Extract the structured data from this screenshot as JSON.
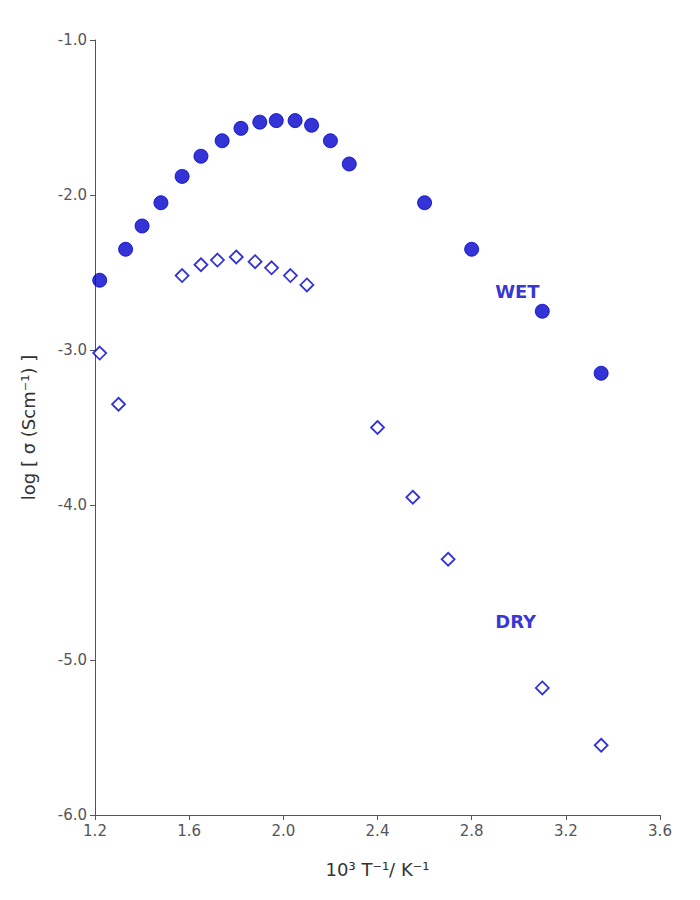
{
  "chart_data": {
    "type": "scatter",
    "xlabel": "10³ T⁻¹/ K⁻¹",
    "ylabel": "log [ σ (Scm⁻¹) ]",
    "color": "#0000CC",
    "grid": false,
    "xlim": [
      1.2,
      3.6
    ],
    "ylim": [
      -6.0,
      -1.0
    ],
    "xticks": [
      1.2,
      1.6,
      {
        "value": 2.0,
        "label": "2.0"
      },
      2.4,
      2.8,
      3.2,
      3.6
    ],
    "yticks": [
      {
        "value": -6.0,
        "label": "-6.0"
      },
      {
        "value": -5.0,
        "label": "-5.0"
      },
      {
        "value": -4.0,
        "label": "-4.0"
      },
      {
        "value": -3.0,
        "label": "-3.0"
      },
      {
        "value": -2.0,
        "label": "-2.0"
      },
      {
        "value": -1.0,
        "label": "-1.0"
      }
    ],
    "series": [
      {
        "marker": "circle",
        "color": "#0000CC",
        "x": [
          1.22,
          1.33,
          1.4,
          1.48,
          1.57,
          1.65,
          1.74,
          1.82,
          1.9,
          1.97,
          2.05,
          2.12,
          2.2,
          2.28,
          2.6,
          2.8,
          3.1,
          3.35
        ],
        "values": [
          -2.55,
          -2.35,
          -2.2,
          -2.05,
          -1.88,
          -1.75,
          -1.65,
          -1.57,
          -1.53,
          -1.52,
          -1.52,
          -1.55,
          -1.65,
          -1.8,
          -2.05,
          -2.35,
          -2.75,
          -3.15
        ]
      },
      {
        "marker": "open_diamond",
        "color": "#0000CC",
        "x": [
          1.22,
          1.3,
          1.57,
          1.65,
          1.72,
          1.8,
          1.88,
          1.95,
          2.03,
          2.1,
          2.4,
          2.55,
          2.7,
          3.1,
          3.35
        ],
        "values": [
          -3.02,
          -3.35,
          -2.52,
          -2.45,
          -2.42,
          -2.4,
          -2.43,
          -2.47,
          -2.52,
          -2.58,
          -3.5,
          -3.95,
          -4.35,
          -5.18,
          -5.55
        ]
      }
    ],
    "annotations": [
      {
        "text": "WET",
        "x": 2.9,
        "y": -2.62
      },
      {
        "text": "DRY",
        "x": 2.9,
        "y": -4.75
      }
    ]
  }
}
